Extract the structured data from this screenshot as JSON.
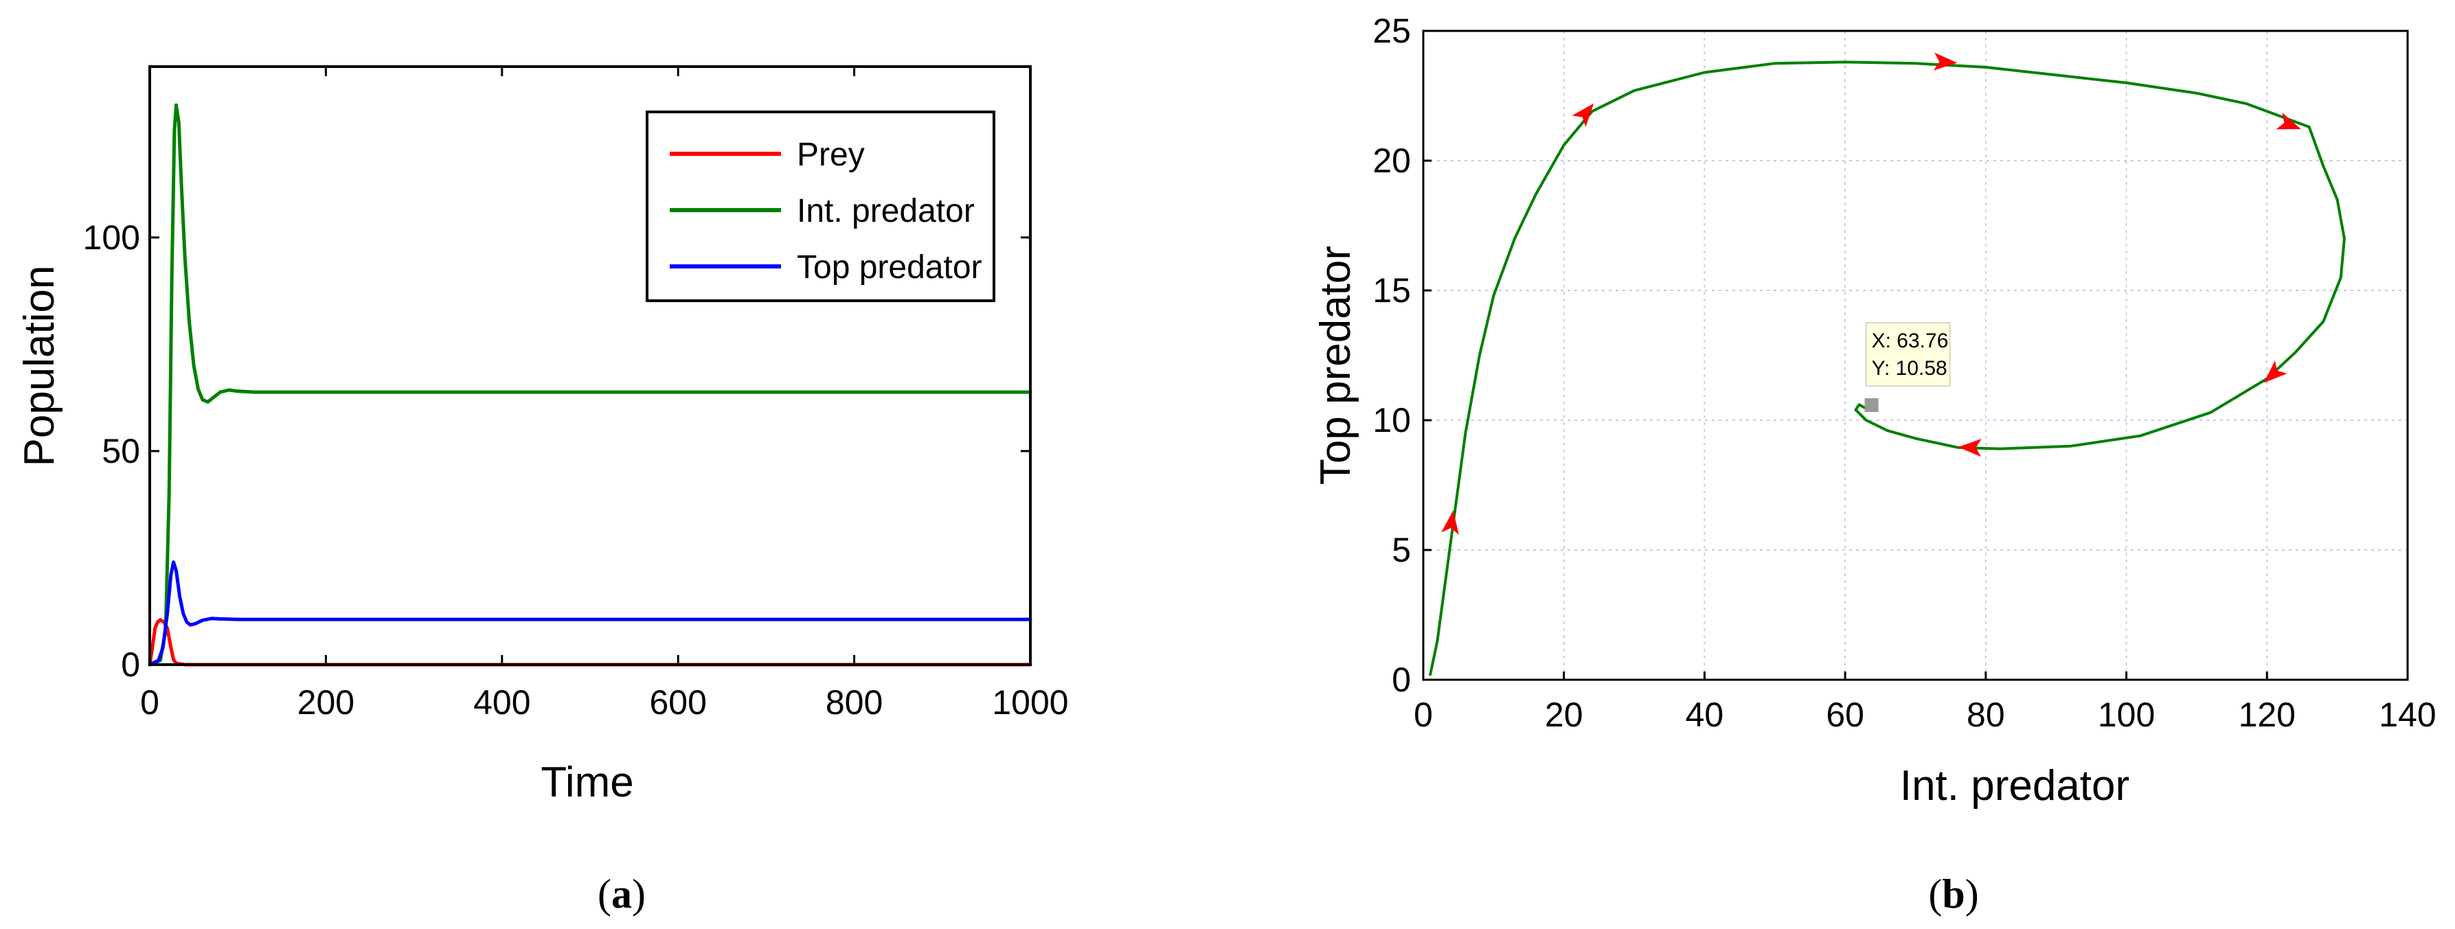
{
  "chart_data": [
    {
      "panel": "(a)",
      "caption_letter": "a",
      "type": "line",
      "xlabel": "Time",
      "ylabel": "Population",
      "xlim": [
        0,
        1000
      ],
      "ylim": [
        0,
        140
      ],
      "xticks": [
        "0",
        "200",
        "400",
        "600",
        "800",
        "1000"
      ],
      "yticks": [
        "0",
        "50",
        "100"
      ],
      "grid": false,
      "legend_position": "top-right",
      "series": [
        {
          "name": "Prey",
          "color": "#ff0000",
          "points": [
            [
              0,
              0
            ],
            [
              3,
              4
            ],
            [
              6,
              8.5
            ],
            [
              9,
              10
            ],
            [
              12,
              10.5
            ],
            [
              16,
              10
            ],
            [
              20,
              8.5
            ],
            [
              24,
              4
            ],
            [
              27,
              1.2
            ],
            [
              30,
              0.3
            ],
            [
              40,
              0
            ],
            [
              1000,
              0
            ]
          ]
        },
        {
          "name": "Int. predator",
          "color": "#008000",
          "points": [
            [
              0,
              0
            ],
            [
              12,
              1
            ],
            [
              18,
              8
            ],
            [
              22,
              40
            ],
            [
              25,
              90
            ],
            [
              28,
              125
            ],
            [
              30,
              131
            ],
            [
              33,
              127
            ],
            [
              36,
              112
            ],
            [
              40,
              95
            ],
            [
              45,
              80
            ],
            [
              50,
              70
            ],
            [
              55,
              64.5
            ],
            [
              60,
              62
            ],
            [
              66,
              61.5
            ],
            [
              72,
              62.5
            ],
            [
              80,
              63.8
            ],
            [
              90,
              64.3
            ],
            [
              100,
              64
            ],
            [
              120,
              63.8
            ],
            [
              1000,
              63.8
            ]
          ]
        },
        {
          "name": "Top predator",
          "color": "#0000ff",
          "points": [
            [
              0,
              0
            ],
            [
              10,
              1
            ],
            [
              15,
              4
            ],
            [
              20,
              12
            ],
            [
              24,
              21
            ],
            [
              27,
              24
            ],
            [
              30,
              22
            ],
            [
              34,
              16
            ],
            [
              38,
              12
            ],
            [
              42,
              10
            ],
            [
              46,
              9.3
            ],
            [
              52,
              9.6
            ],
            [
              60,
              10.4
            ],
            [
              70,
              10.8
            ],
            [
              80,
              10.7
            ],
            [
              100,
              10.6
            ],
            [
              1000,
              10.6
            ]
          ]
        }
      ]
    },
    {
      "panel": "(b)",
      "caption_letter": "b",
      "type": "line",
      "xlabel": "Int. predator",
      "ylabel": "Top predator",
      "xlim": [
        0,
        140
      ],
      "ylim": [
        0,
        25
      ],
      "xticks": [
        "0",
        "20",
        "40",
        "60",
        "80",
        "100",
        "120",
        "140"
      ],
      "yticks": [
        "0",
        "5",
        "10",
        "15",
        "20",
        "25"
      ],
      "grid": true,
      "series": [
        {
          "name": "",
          "color": "#008000",
          "points": [
            [
              1,
              0.2
            ],
            [
              2,
              1.5
            ],
            [
              3,
              3.5
            ],
            [
              4,
              5.5
            ],
            [
              5,
              7.5
            ],
            [
              6,
              9.5
            ],
            [
              8,
              12.5
            ],
            [
              10,
              14.8
            ],
            [
              13,
              17
            ],
            [
              16,
              18.7
            ],
            [
              20,
              20.6
            ],
            [
              24,
              21.9
            ],
            [
              30,
              22.7
            ],
            [
              40,
              23.4
            ],
            [
              50,
              23.75
            ],
            [
              60,
              23.8
            ],
            [
              70,
              23.75
            ],
            [
              80,
              23.6
            ],
            [
              90,
              23.3
            ],
            [
              100,
              23
            ],
            [
              110,
              22.6
            ],
            [
              117,
              22.2
            ],
            [
              122,
              21.7
            ],
            [
              126,
              21.3
            ],
            [
              128,
              19.8
            ],
            [
              130,
              18.5
            ],
            [
              131,
              17
            ],
            [
              130.5,
              15.5
            ],
            [
              128,
              13.8
            ],
            [
              124,
              12.6
            ],
            [
              120,
              11.6
            ],
            [
              112,
              10.3
            ],
            [
              102,
              9.4
            ],
            [
              92,
              9
            ],
            [
              82,
              8.9
            ],
            [
              76,
              8.95
            ],
            [
              70,
              9.3
            ],
            [
              66,
              9.6
            ],
            [
              63,
              10
            ],
            [
              61.5,
              10.4
            ],
            [
              62,
              10.6
            ],
            [
              63,
              10.45
            ]
          ]
        }
      ],
      "arrows": [
        [
          4,
          6
        ],
        [
          23,
          21.8
        ],
        [
          74,
          23.8
        ],
        [
          123,
          21.4
        ],
        [
          121,
          11.8
        ],
        [
          78,
          8.95
        ]
      ],
      "arrow_color": "#ff0000",
      "datatip": {
        "x": 63.76,
        "y": 10.58,
        "label_x": "X: 63.76",
        "label_y": "Y: 10.58"
      }
    }
  ]
}
